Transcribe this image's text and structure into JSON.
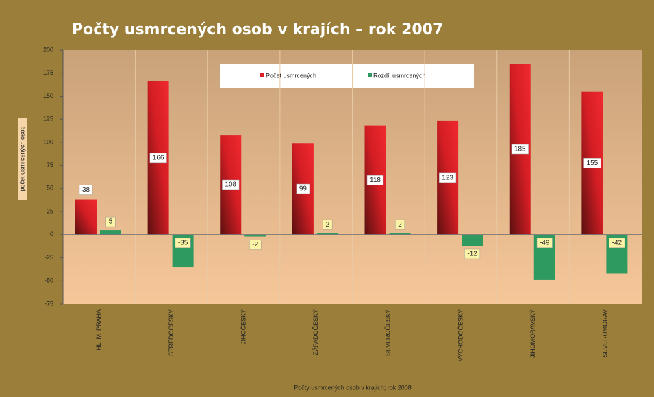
{
  "chart_data": {
    "type": "bar",
    "title": "Počty usmrcených osob v krajích – rok 2007",
    "y_label": "počet usmrcených osob",
    "x_label": "Počty usmrcených osob v krajích; rok  2008",
    "categories": [
      "HL. M. PRAHA",
      "STŘEDOČESKÝ",
      "JIHOČESKÝ",
      "ZÁPADOČESKÝ",
      "SEVEROČESKÝ",
      "VÝCHODOČESKÝ",
      "JIHOMORAVSKÝ",
      "SEVEROMORAV"
    ],
    "series": [
      {
        "name": "Počet usmrcených",
        "color": "#dd1f26",
        "values": [
          38,
          166,
          108,
          99,
          118,
          123,
          185,
          155
        ]
      },
      {
        "name": "Rozdíl usmrcených",
        "color": "#2f9a60",
        "values": [
          5,
          -35,
          -2,
          2,
          2,
          -12,
          -49,
          -42
        ]
      }
    ],
    "ylim": [
      -75,
      200
    ],
    "yticks": [
      -75,
      -50,
      -25,
      0,
      25,
      50,
      75,
      100,
      125,
      150,
      175,
      200
    ],
    "grid": true,
    "legend": "top"
  }
}
